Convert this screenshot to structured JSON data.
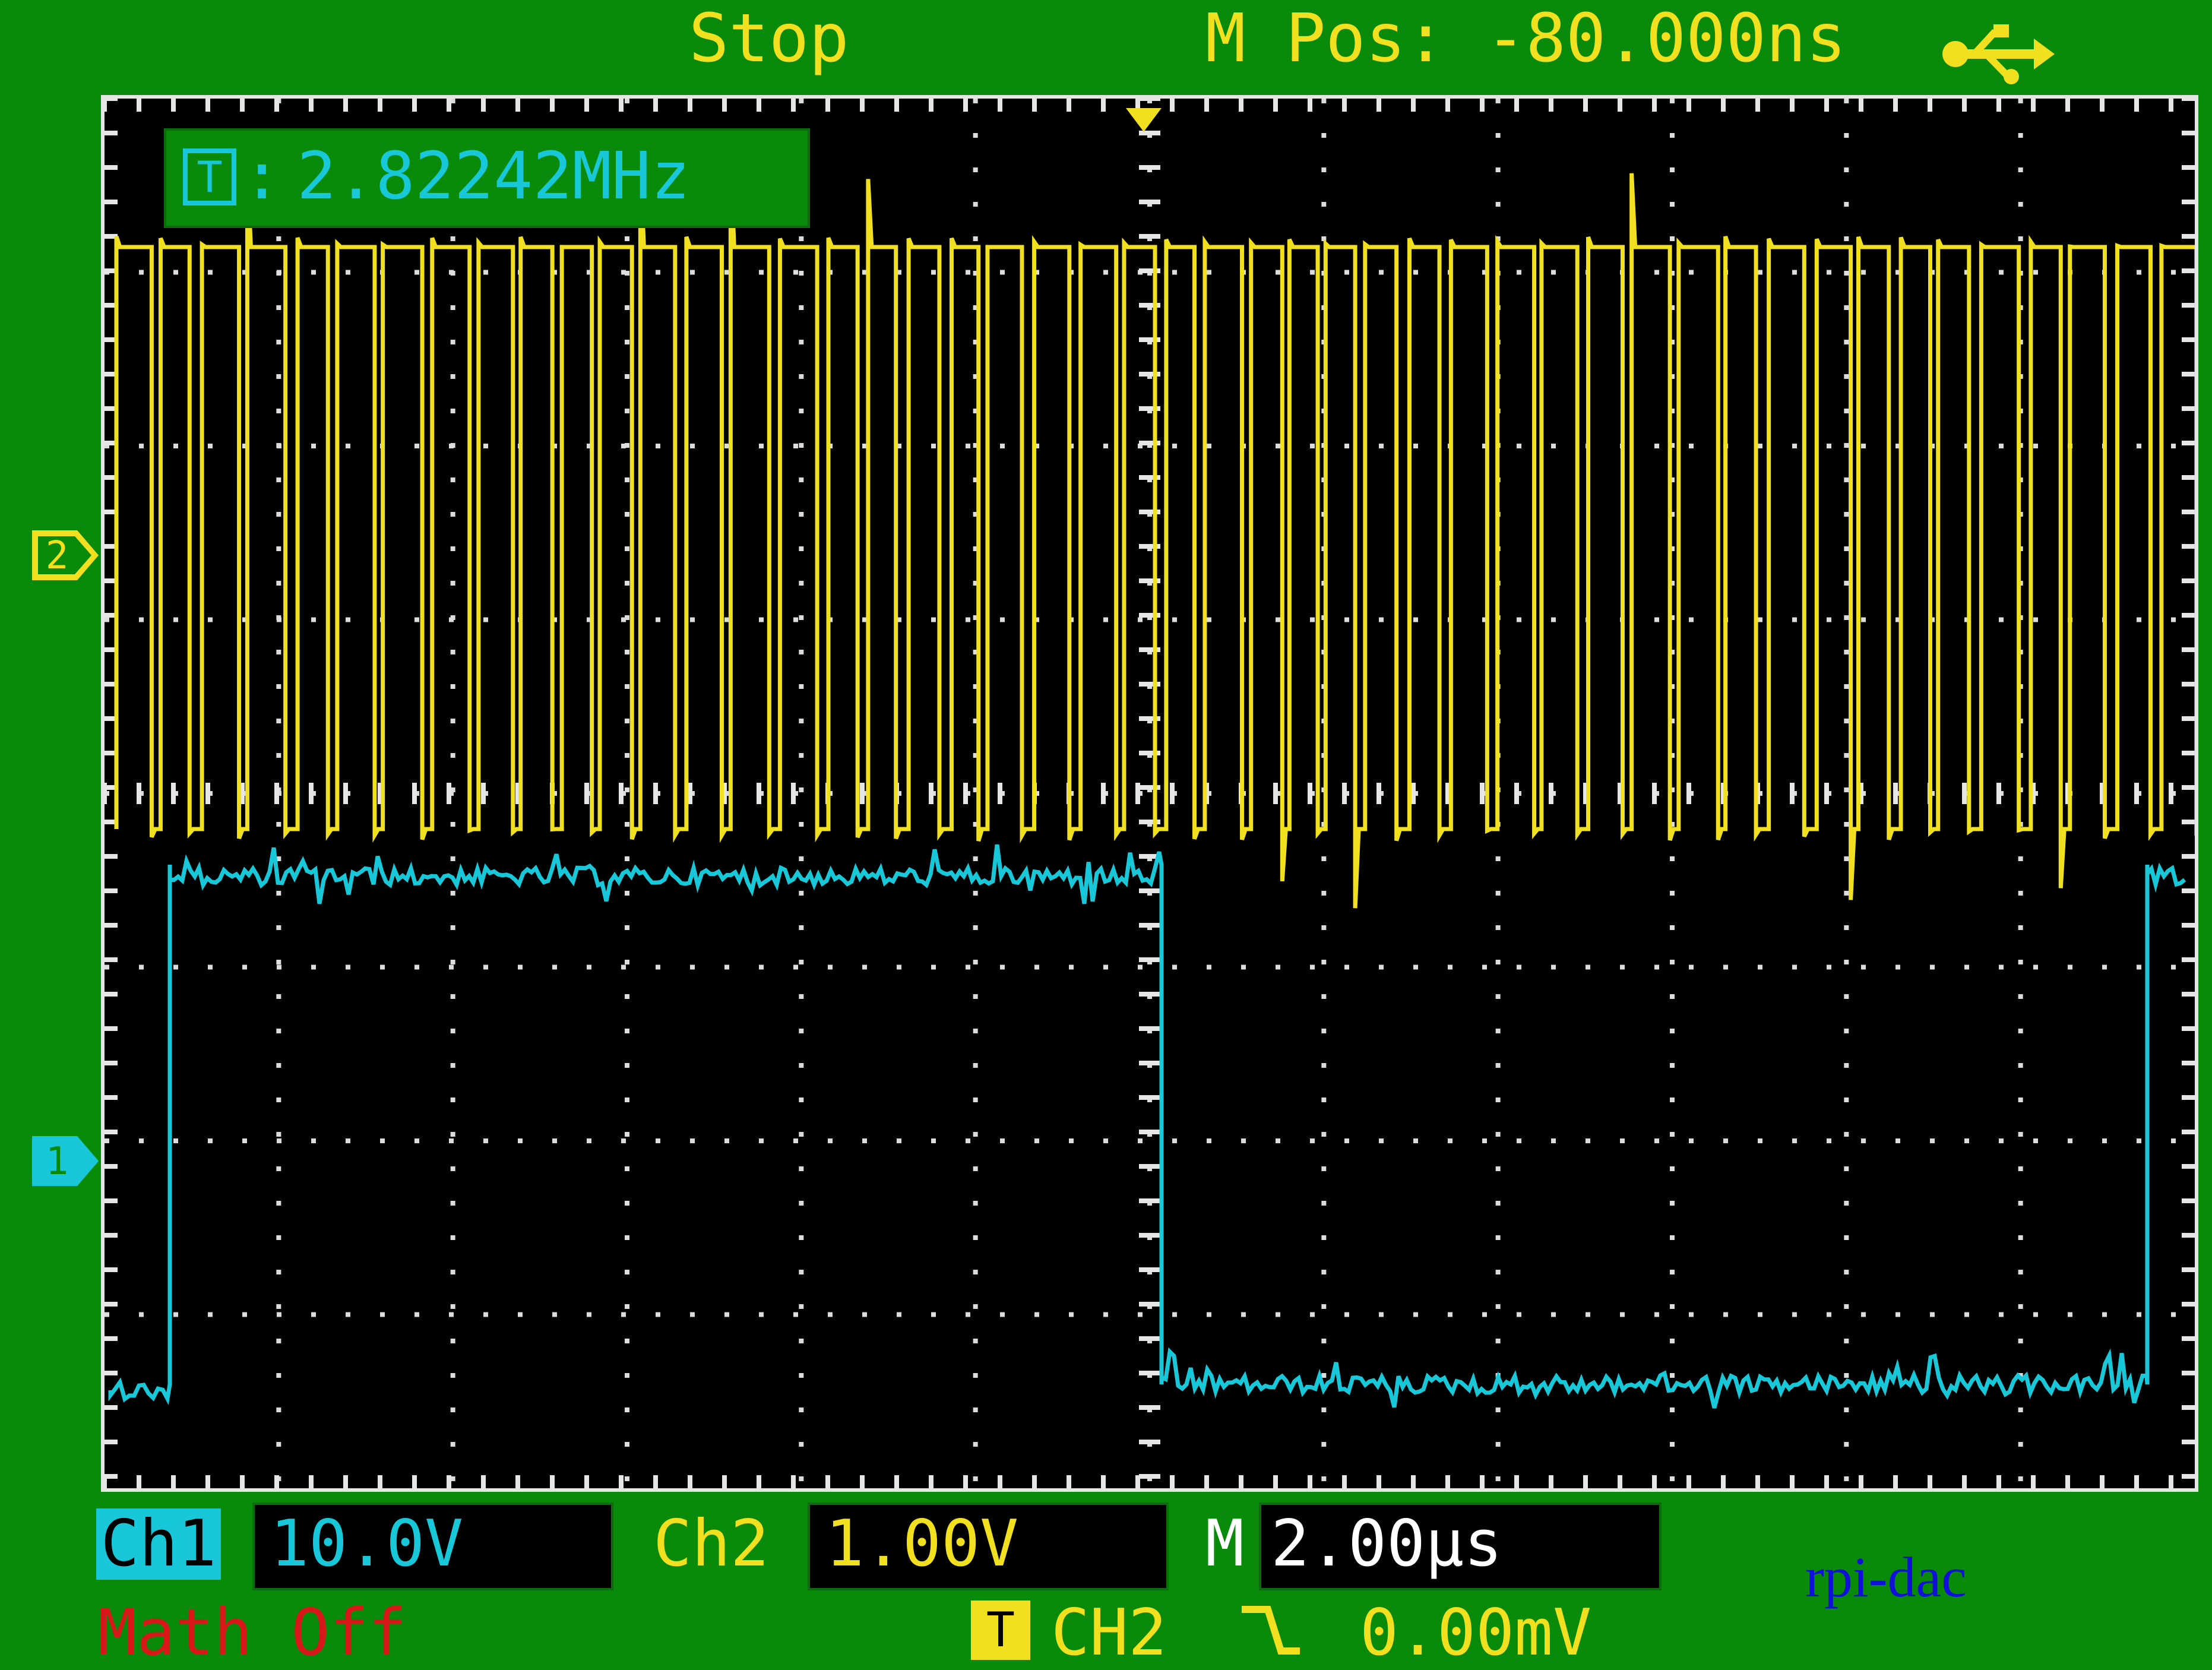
{
  "header": {
    "status": "Stop",
    "mpos": "M Pos: -80.000ns",
    "usb_icon": "usb-icon"
  },
  "measurement": {
    "icon": "T",
    "colon": ":",
    "value": "2.82242MHz"
  },
  "channel_markers": {
    "ch2": "2",
    "ch1": "1"
  },
  "bottom": {
    "ch1_label": "Ch1",
    "ch1_scale": "10.0V",
    "ch2_label": "Ch2",
    "ch2_scale": "1.00V",
    "m_label": "M",
    "m_scale": "2.00µs",
    "math": "Math Off",
    "trigger_icon": "T",
    "trigger_source": "CH2",
    "trigger_level": "0.00mV"
  },
  "watermark": "rpi-dac",
  "colors": {
    "ch1": "#18c8d8",
    "ch2": "#f0e020",
    "background": "#0a8a0a",
    "screen": "#000000",
    "math": "#d81818"
  }
}
